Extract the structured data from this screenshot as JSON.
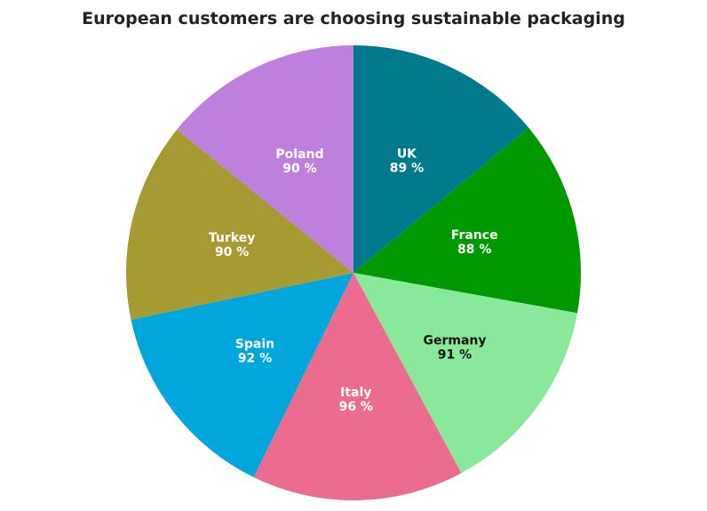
{
  "chart_data": {
    "type": "pie",
    "title": "European customers are choosing sustainable packaging",
    "unit_suffix": " %",
    "slices": [
      {
        "label": "UK",
        "value": 89,
        "color": "#007a8c",
        "label_color": "#ffffff"
      },
      {
        "label": "France",
        "value": 88,
        "color": "#009900",
        "label_color": "#ffffff"
      },
      {
        "label": "Germany",
        "value": 91,
        "color": "#89e89a",
        "label_color": "#111111"
      },
      {
        "label": "Italy",
        "value": 96,
        "color": "#ec6c8f",
        "label_color": "#ffffff"
      },
      {
        "label": "Spain",
        "value": 92,
        "color": "#00a6dc",
        "label_color": "#ffffff"
      },
      {
        "label": "Turkey",
        "value": 90,
        "color": "#a69a32",
        "label_color": "#ffffff"
      },
      {
        "label": "Poland",
        "value": 90,
        "color": "#bf80dd",
        "label_color": "#ffffff"
      }
    ],
    "start_angle": "top",
    "direction": "clockwise",
    "legend": "none"
  }
}
